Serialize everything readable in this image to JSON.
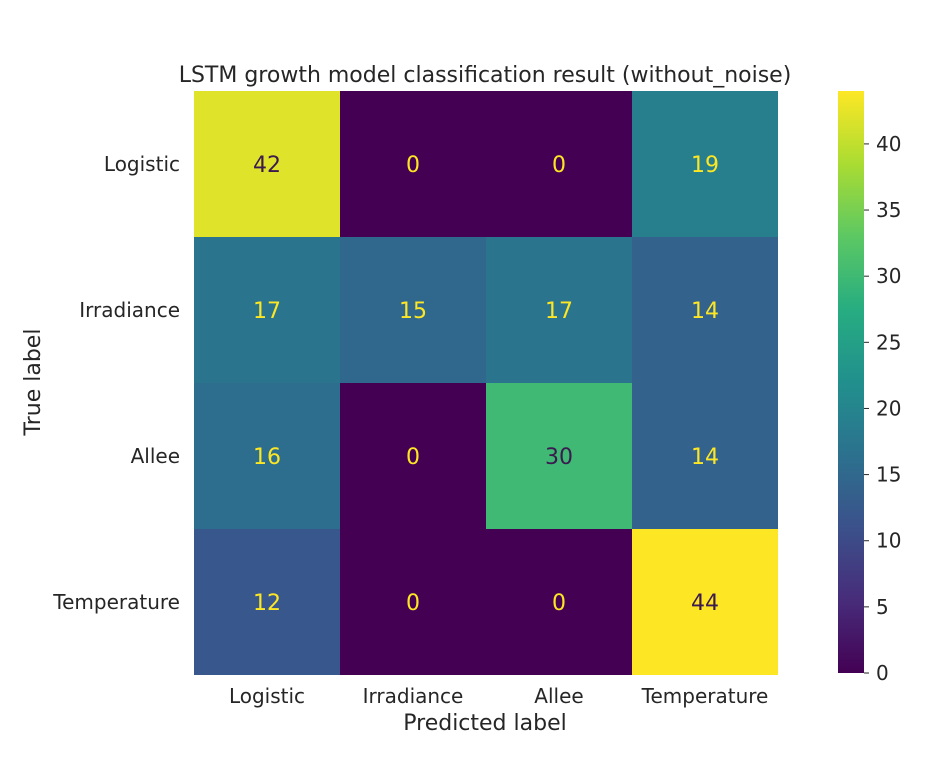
{
  "chart_data": {
    "type": "heatmap",
    "title": "LSTM growth model classification result (without_noise)",
    "xlabel": "Predicted label",
    "ylabel": "True label",
    "x_categories": [
      "Logistic",
      "Irradiance",
      "Allee",
      "Temperature"
    ],
    "y_categories": [
      "Logistic",
      "Irradiance",
      "Allee",
      "Temperature"
    ],
    "matrix": [
      [
        42,
        0,
        0,
        19
      ],
      [
        17,
        15,
        17,
        14
      ],
      [
        16,
        0,
        30,
        14
      ],
      [
        12,
        0,
        0,
        44
      ]
    ],
    "colormap": "viridis",
    "colorbar": {
      "min": 0,
      "max": 44,
      "ticks": [
        0,
        5,
        10,
        15,
        20,
        25,
        30,
        35,
        40
      ]
    },
    "grid": false
  }
}
